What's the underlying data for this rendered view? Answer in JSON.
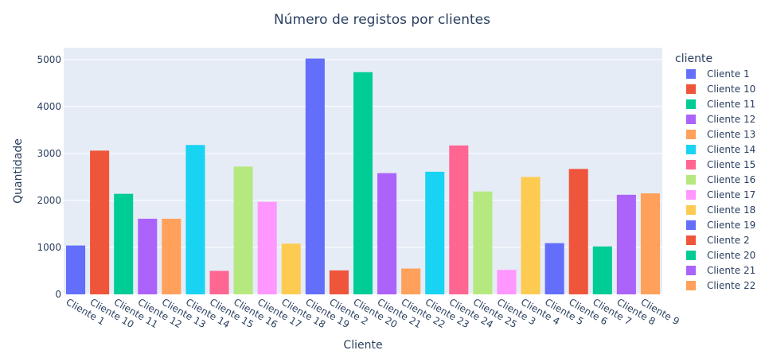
{
  "chart_data": {
    "type": "bar",
    "title": "Número de registos por clientes",
    "xlabel": "Cliente",
    "ylabel": "Quantidade",
    "ylim": [
      0,
      5250
    ],
    "yticks": [
      0,
      1000,
      2000,
      3000,
      4000,
      5000
    ],
    "grid": true,
    "legend": {
      "title": "cliente",
      "placement": "right",
      "entries": [
        "Cliente 1",
        "Cliente 10",
        "Cliente 11",
        "Cliente 12",
        "Cliente 13",
        "Cliente 14",
        "Cliente 15",
        "Cliente 16",
        "Cliente 17",
        "Cliente 18",
        "Cliente 19",
        "Cliente 2",
        "Cliente 20",
        "Cliente 21",
        "Cliente 22"
      ]
    },
    "categories": [
      "Cliente 1",
      "Cliente 10",
      "Cliente 11",
      "Cliente 12",
      "Cliente 13",
      "Cliente 14",
      "Cliente 15",
      "Cliente 16",
      "Cliente 17",
      "Cliente 18",
      "Cliente 19",
      "Cliente 2",
      "Cliente 20",
      "Cliente 21",
      "Cliente 22",
      "Cliente 23",
      "Cliente 24",
      "Cliente 25",
      "Cliente 3",
      "Cliente 4",
      "Cliente 5",
      "Cliente 6",
      "Cliente 7",
      "Cliente 8",
      "Cliente 9"
    ],
    "values": [
      1040,
      3060,
      2140,
      1610,
      1610,
      3180,
      500,
      2720,
      1970,
      1080,
      5020,
      510,
      4730,
      2580,
      550,
      2610,
      3170,
      2190,
      520,
      2500,
      1090,
      2670,
      1020,
      2120,
      2150
    ],
    "palette": [
      "#636efa",
      "#EF553B",
      "#00cc96",
      "#ab63fa",
      "#FFA15A",
      "#19d3f3",
      "#FF6692",
      "#B6E880",
      "#FF97FF",
      "#FECB52"
    ],
    "plot_bg": "#e5ecf6",
    "gridline_color": "#ffffff",
    "text_color": "#2a3f5f"
  }
}
